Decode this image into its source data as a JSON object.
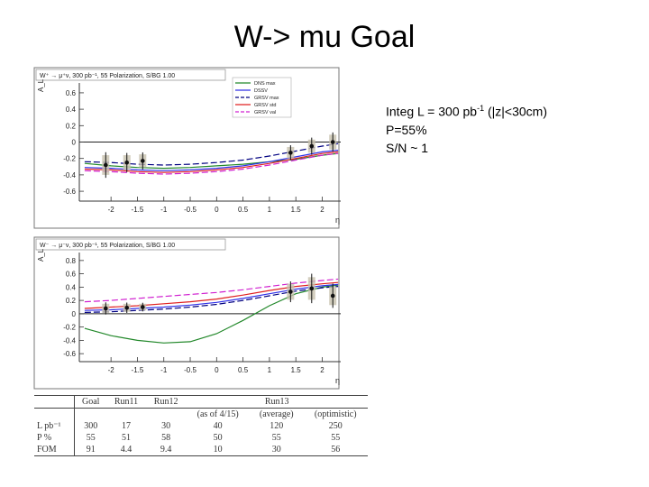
{
  "slide": {
    "title": "W-> mu Goal"
  },
  "info": {
    "lumi_prefix": "Integ L = 300 pb",
    "lumi_sup": "-1",
    "lumi_suffix": " (|z|<30cm)",
    "polarization": "P=55%",
    "sn": "S/N ~ 1"
  },
  "chart_data": [
    {
      "type": "line",
      "title": "W⁺ → μ⁺ν, 300 pb⁻¹, 55 Polarization, S/BG 1.00",
      "xlabel": "η",
      "ylabel": "A_L",
      "xlim": [
        -2.6,
        2.35
      ],
      "ylim": [
        -0.72,
        0.72
      ],
      "xticks": [
        "-2",
        "-1.5",
        "-1",
        "-0.5",
        "0",
        "0.5",
        "1",
        "1.5",
        "2"
      ],
      "xtick_values": [
        -2,
        -1.5,
        -1,
        -0.5,
        0,
        0.5,
        1,
        1.5,
        2
      ],
      "yticks": [
        "0.6",
        "0.4",
        "0.2",
        "0",
        "-0.2",
        "-0.4",
        "-0.6"
      ],
      "ytick_values": [
        0.6,
        0.4,
        0.2,
        0,
        -0.2,
        -0.4,
        -0.6
      ],
      "legend": {
        "position": "top-right",
        "entries": [
          "DNS max",
          "DSSV",
          "GRSV max",
          "GRSV std",
          "GRSV val"
        ]
      },
      "series": [
        {
          "name": "DNS max",
          "color": "#22882a",
          "dashed": false,
          "x": [
            -2.5,
            -2,
            -1.5,
            -1,
            -0.5,
            0,
            0.5,
            1,
            1.5,
            2,
            2.3
          ],
          "y": [
            -0.26,
            -0.29,
            -0.31,
            -0.32,
            -0.31,
            -0.29,
            -0.27,
            -0.24,
            -0.21,
            -0.16,
            -0.14
          ]
        },
        {
          "name": "DSSV",
          "color": "#3030e8",
          "dashed": false,
          "x": [
            -2.5,
            -2,
            -1.5,
            -1,
            -0.5,
            0,
            0.5,
            1,
            1.5,
            2,
            2.3
          ],
          "y": [
            -0.31,
            -0.32,
            -0.34,
            -0.35,
            -0.34,
            -0.32,
            -0.29,
            -0.24,
            -0.18,
            -0.12,
            -0.1
          ]
        },
        {
          "name": "GRSV max",
          "color": "#000080",
          "dashed": true,
          "x": [
            -2.5,
            -2,
            -1.5,
            -1,
            -0.5,
            0,
            0.5,
            1,
            1.5,
            2,
            2.3
          ],
          "y": [
            -0.24,
            -0.25,
            -0.27,
            -0.28,
            -0.27,
            -0.25,
            -0.22,
            -0.17,
            -0.11,
            -0.05,
            -0.02
          ]
        },
        {
          "name": "GRSV std",
          "color": "#e02020",
          "dashed": false,
          "x": [
            -2.5,
            -2,
            -1.5,
            -1,
            -0.5,
            0,
            0.5,
            1,
            1.5,
            2,
            2.3
          ],
          "y": [
            -0.33,
            -0.34,
            -0.36,
            -0.37,
            -0.36,
            -0.34,
            -0.31,
            -0.26,
            -0.2,
            -0.14,
            -0.12
          ]
        },
        {
          "name": "GRSV val",
          "color": "#d020d0",
          "dashed": true,
          "x": [
            -2.5,
            -2,
            -1.5,
            -1,
            -0.5,
            0,
            0.5,
            1,
            1.5,
            2,
            2.3
          ],
          "y": [
            -0.35,
            -0.36,
            -0.38,
            -0.39,
            -0.38,
            -0.36,
            -0.33,
            -0.28,
            -0.22,
            -0.16,
            -0.14
          ]
        }
      ],
      "points": {
        "x": [
          -2.1,
          -1.7,
          -1.4,
          1.4,
          1.8,
          2.2
        ],
        "y": [
          -0.28,
          -0.25,
          -0.23,
          -0.13,
          -0.05,
          0.0
        ],
        "err": [
          0.12,
          0.09,
          0.08,
          0.07,
          0.08,
          0.09
        ]
      }
    },
    {
      "type": "line",
      "title": "W⁻ → μ⁻ν, 300 pb⁻¹, 55 Polarization, S/BG 1.00",
      "xlabel": "η",
      "ylabel": "A_L",
      "xlim": [
        -2.6,
        2.35
      ],
      "ylim": [
        -0.72,
        0.92
      ],
      "xticks": [
        "-2",
        "-1.5",
        "-1",
        "-0.5",
        "0",
        "0.5",
        "1",
        "1.5",
        "2"
      ],
      "xtick_values": [
        -2,
        -1.5,
        -1,
        -0.5,
        0,
        0.5,
        1,
        1.5,
        2
      ],
      "yticks": [
        "0.8",
        "0.6",
        "0.4",
        "0.2",
        "0",
        "-0.2",
        "-0.4",
        "-0.6"
      ],
      "ytick_values": [
        0.8,
        0.6,
        0.4,
        0.2,
        0,
        -0.2,
        -0.4,
        -0.6
      ],
      "series": [
        {
          "name": "DNS max",
          "color": "#22882a",
          "dashed": false,
          "x": [
            -2.5,
            -2,
            -1.5,
            -1,
            -0.5,
            0,
            0.5,
            1,
            1.5,
            2,
            2.3
          ],
          "y": [
            -0.22,
            -0.33,
            -0.4,
            -0.44,
            -0.42,
            -0.3,
            -0.1,
            0.12,
            0.3,
            0.4,
            0.43
          ]
        },
        {
          "name": "DSSV",
          "color": "#3030e8",
          "dashed": false,
          "x": [
            -2.5,
            -2,
            -1.5,
            -1,
            -0.5,
            0,
            0.5,
            1,
            1.5,
            2,
            2.3
          ],
          "y": [
            0.05,
            0.06,
            0.08,
            0.1,
            0.13,
            0.17,
            0.23,
            0.3,
            0.37,
            0.42,
            0.44
          ]
        },
        {
          "name": "GRSV max",
          "color": "#000080",
          "dashed": true,
          "x": [
            -2.5,
            -2,
            -1.5,
            -1,
            -0.5,
            0,
            0.5,
            1,
            1.5,
            2,
            2.3
          ],
          "y": [
            0.02,
            0.03,
            0.05,
            0.07,
            0.1,
            0.14,
            0.2,
            0.27,
            0.34,
            0.39,
            0.41
          ]
        },
        {
          "name": "GRSV std",
          "color": "#e02020",
          "dashed": false,
          "x": [
            -2.5,
            -2,
            -1.5,
            -1,
            -0.5,
            0,
            0.5,
            1,
            1.5,
            2,
            2.3
          ],
          "y": [
            0.08,
            0.1,
            0.12,
            0.15,
            0.18,
            0.22,
            0.28,
            0.35,
            0.41,
            0.45,
            0.47
          ]
        },
        {
          "name": "GRSV val",
          "color": "#d020d0",
          "dashed": true,
          "x": [
            -2.5,
            -2,
            -1.5,
            -1,
            -0.5,
            0,
            0.5,
            1,
            1.5,
            2,
            2.3
          ],
          "y": [
            0.18,
            0.2,
            0.23,
            0.26,
            0.29,
            0.32,
            0.36,
            0.41,
            0.46,
            0.5,
            0.52
          ]
        }
      ],
      "points": {
        "x": [
          -2.1,
          -1.7,
          -1.4,
          1.4,
          1.8,
          2.2
        ],
        "y": [
          0.08,
          0.09,
          0.1,
          0.33,
          0.38,
          0.27
        ],
        "err": [
          0.07,
          0.06,
          0.05,
          0.12,
          0.17,
          0.14
        ]
      }
    }
  ],
  "table": {
    "header": [
      "",
      "Goal",
      "Run11",
      "Run12",
      "Run13"
    ],
    "subheader": [
      "",
      "",
      "",
      "",
      "(as of 4/15)",
      "(average)",
      "(optimistic)"
    ],
    "rows": [
      [
        "L pb⁻¹",
        "300",
        "17",
        "30",
        "40",
        "120",
        "250"
      ],
      [
        "P %",
        "55",
        "51",
        "58",
        "50",
        "55",
        "55"
      ],
      [
        "FOM",
        "91",
        "4.4",
        "9.4",
        "10",
        "30",
        "56"
      ]
    ]
  }
}
